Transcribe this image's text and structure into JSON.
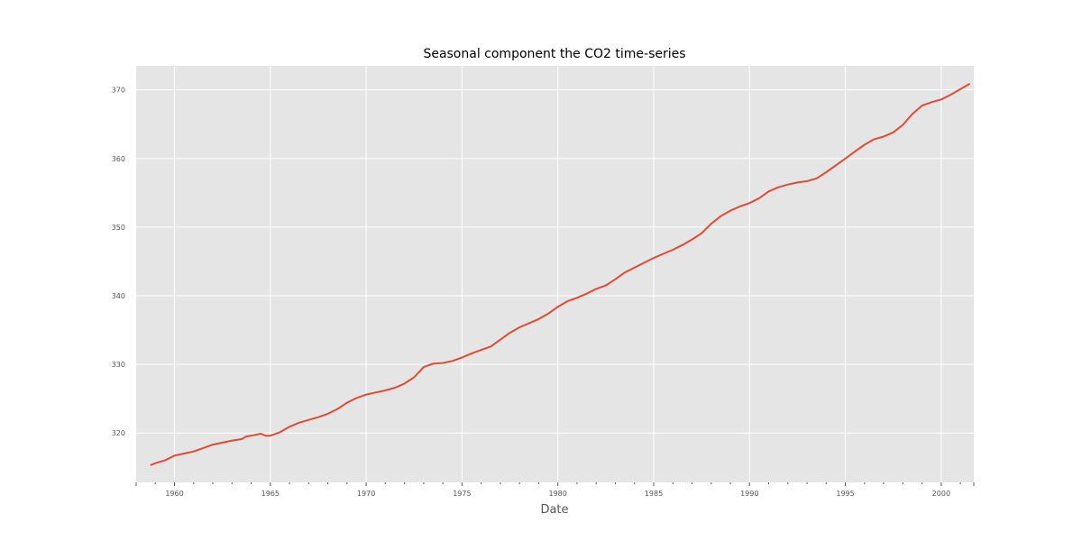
{
  "chart_data": {
    "type": "line",
    "title": "Seasonal component the CO2 time-series",
    "xlabel": "Date",
    "ylabel": "",
    "xlim": [
      1958.0,
      2001.7
    ],
    "ylim": [
      312.8,
      373.5
    ],
    "x_ticks": [
      1960,
      1965,
      1970,
      1975,
      1980,
      1985,
      1990,
      1995,
      2000
    ],
    "y_ticks": [
      320,
      330,
      340,
      350,
      360,
      370
    ],
    "grid": true,
    "legend": "none",
    "colors": {
      "line": "#e24a33",
      "plot_background": "#e5e5e5",
      "grid": "#ffffff",
      "text": "#555555"
    },
    "series": [
      {
        "x": [
          1958.75,
          1959.0,
          1959.5,
          1960.0,
          1960.5,
          1961.0,
          1961.5,
          1962.0,
          1962.5,
          1963.0,
          1963.5,
          1963.75,
          1964.0,
          1964.5,
          1964.75,
          1965.0,
          1965.5,
          1966.0,
          1966.5,
          1967.0,
          1967.5,
          1968.0,
          1968.5,
          1969.0,
          1969.5,
          1970.0,
          1970.5,
          1971.0,
          1971.5,
          1972.0,
          1972.5,
          1973.0,
          1973.5,
          1974.0,
          1974.5,
          1975.0,
          1975.5,
          1976.0,
          1976.5,
          1977.0,
          1977.5,
          1978.0,
          1978.5,
          1979.0,
          1979.5,
          1980.0,
          1980.5,
          1981.0,
          1981.5,
          1982.0,
          1982.5,
          1983.0,
          1983.5,
          1984.0,
          1984.5,
          1985.0,
          1985.5,
          1986.0,
          1986.5,
          1987.0,
          1987.5,
          1988.0,
          1988.5,
          1989.0,
          1989.5,
          1990.0,
          1990.5,
          1991.0,
          1991.5,
          1992.0,
          1992.5,
          1993.0,
          1993.5,
          1994.0,
          1994.5,
          1995.0,
          1995.5,
          1996.0,
          1996.5,
          1997.0,
          1997.5,
          1998.0,
          1998.5,
          1999.0,
          1999.5,
          2000.0,
          2000.5,
          2001.0,
          2001.5
        ],
        "values": [
          315.3,
          315.6,
          316.0,
          316.7,
          317.0,
          317.3,
          317.8,
          318.3,
          318.6,
          318.9,
          319.1,
          319.5,
          319.6,
          319.9,
          319.6,
          319.6,
          320.1,
          320.9,
          321.5,
          321.9,
          322.3,
          322.8,
          323.5,
          324.4,
          325.1,
          325.6,
          325.9,
          326.2,
          326.6,
          327.2,
          328.1,
          329.6,
          330.1,
          330.2,
          330.5,
          331.0,
          331.6,
          332.1,
          332.6,
          333.6,
          334.6,
          335.4,
          336.0,
          336.6,
          337.4,
          338.4,
          339.2,
          339.7,
          340.3,
          341.0,
          341.5,
          342.4,
          343.4,
          344.1,
          344.8,
          345.5,
          346.1,
          346.7,
          347.4,
          348.2,
          349.1,
          350.5,
          351.6,
          352.4,
          353.0,
          353.5,
          354.2,
          355.2,
          355.8,
          356.2,
          356.5,
          356.7,
          357.1,
          358.0,
          359.0,
          360.0,
          361.0,
          362.0,
          362.8,
          363.2,
          363.8,
          364.9,
          366.5,
          367.7,
          368.2,
          368.6,
          369.3,
          370.1,
          370.9
        ]
      }
    ]
  }
}
